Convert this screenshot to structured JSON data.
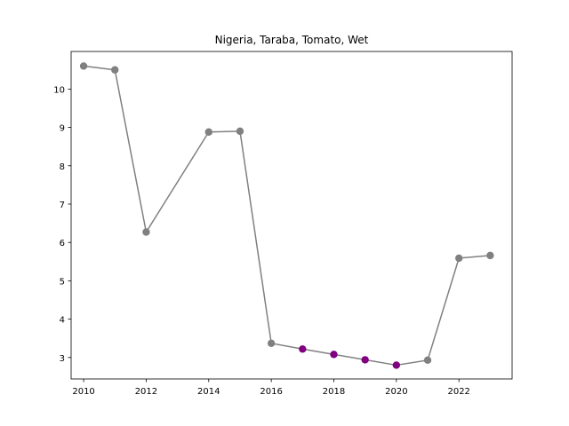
{
  "chart_data": {
    "type": "line",
    "title": "Nigeria, Taraba, Tomato, Wet",
    "xlabel": "",
    "ylabel": "",
    "xlim": [
      2009.6,
      2023.7
    ],
    "ylim": [
      2.44,
      10.98
    ],
    "xticks": [
      2010,
      2012,
      2014,
      2016,
      2018,
      2020,
      2022
    ],
    "yticks": [
      3,
      4,
      5,
      6,
      7,
      8,
      9,
      10
    ],
    "grid": false,
    "line_color": "#808080",
    "series": [
      {
        "points": [
          {
            "x": 2010,
            "y": 10.6,
            "color": "#808080"
          },
          {
            "x": 2011,
            "y": 10.5,
            "color": "#808080"
          },
          {
            "x": 2012,
            "y": 6.27,
            "color": "#808080"
          },
          {
            "x": 2014,
            "y": 8.88,
            "color": "#808080"
          },
          {
            "x": 2015,
            "y": 8.9,
            "color": "#808080"
          },
          {
            "x": 2016,
            "y": 3.37,
            "color": "#808080"
          },
          {
            "x": 2017,
            "y": 3.22,
            "color": "#800080"
          },
          {
            "x": 2018,
            "y": 3.08,
            "color": "#800080"
          },
          {
            "x": 2019,
            "y": 2.94,
            "color": "#800080"
          },
          {
            "x": 2020,
            "y": 2.8,
            "color": "#800080"
          },
          {
            "x": 2021,
            "y": 2.93,
            "color": "#808080"
          },
          {
            "x": 2022,
            "y": 5.59,
            "color": "#808080"
          },
          {
            "x": 2023,
            "y": 5.66,
            "color": "#808080"
          }
        ]
      }
    ]
  }
}
